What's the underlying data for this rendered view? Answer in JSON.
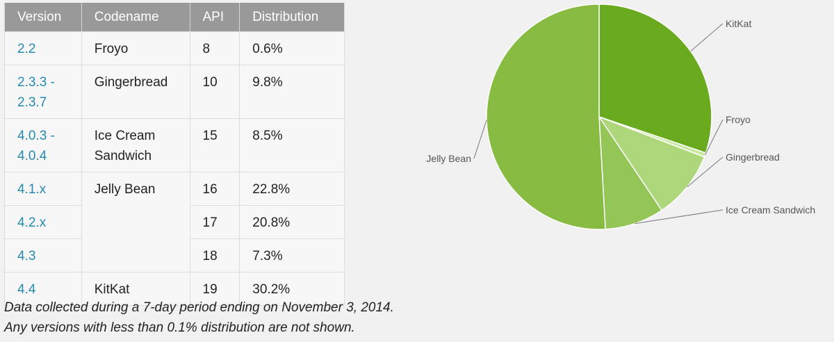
{
  "table": {
    "headers": [
      "Version",
      "Codename",
      "API",
      "Distribution"
    ],
    "rows": [
      {
        "version": "2.2",
        "codename": "Froyo",
        "api": "8",
        "distribution": "0.6%"
      },
      {
        "version": "2.3.3 -\n2.3.7",
        "codename": "Gingerbread",
        "api": "10",
        "distribution": "9.8%"
      },
      {
        "version": "4.0.3 -\n4.0.4",
        "codename": "Ice Cream\nSandwich",
        "api": "15",
        "distribution": "8.5%"
      },
      {
        "version": "4.1.x",
        "codename": "Jelly Bean",
        "api": "16",
        "distribution": "22.8%"
      },
      {
        "version": "4.2.x",
        "codename": "",
        "api": "17",
        "distribution": "20.8%"
      },
      {
        "version": "4.3",
        "codename": "",
        "api": "18",
        "distribution": "7.3%"
      },
      {
        "version": "4.4",
        "codename": "KitKat",
        "api": "19",
        "distribution": "30.2%"
      }
    ]
  },
  "notes": {
    "line1": "Data collected during a 7-day period ending on November 3, 2014.",
    "line2": "Any versions with less than 0.1% distribution are not shown."
  },
  "chart_data": {
    "type": "pie",
    "slices": [
      {
        "label": "KitKat",
        "value": 30.2,
        "color": "#6aaa1f"
      },
      {
        "label": "Froyo",
        "value": 0.6,
        "color": "#c8e89e"
      },
      {
        "label": "Gingerbread",
        "value": 9.8,
        "color": "#aed67a"
      },
      {
        "label": "Ice Cream Sandwich",
        "value": 8.5,
        "color": "#93c557"
      },
      {
        "label": "Jelly Bean",
        "value": 50.9,
        "color": "#87bb41"
      }
    ]
  }
}
